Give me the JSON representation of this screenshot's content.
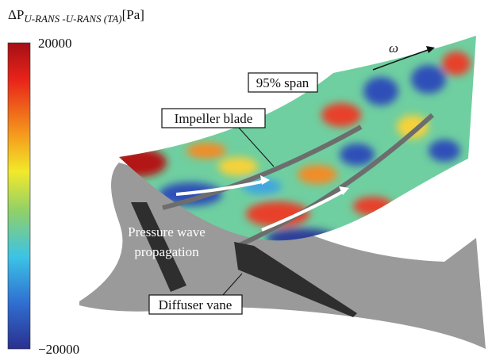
{
  "colorbar": {
    "title": {
      "symbol": "ΔP",
      "subscript": "U-RANS -U-RANS (TA)",
      "unit": "[Pa]"
    },
    "max_label": "20000",
    "min_label": "−20000"
  },
  "annotations": {
    "rotation": "ω",
    "span": "95% span",
    "impeller": "Impeller blade",
    "wave_line1": "Pressure wave",
    "wave_line2": "propagation",
    "diffuser": "Diffuser vane"
  }
}
